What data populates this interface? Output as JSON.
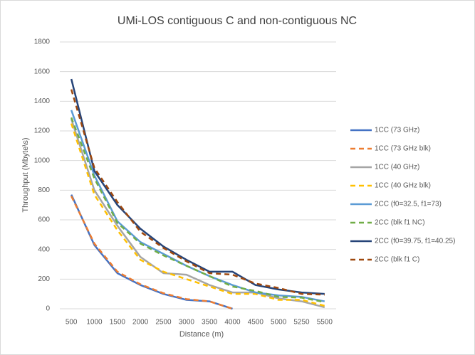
{
  "chart_data": {
    "type": "line",
    "title": "UMi-LOS contiguous C and non-contiguous NC",
    "x_label": "Distance (m)",
    "y_label": "Throughput (Mbyte\\s)",
    "categories": [
      "500",
      "1000",
      "1500",
      "2000",
      "2500",
      "3000",
      "3500",
      "4000",
      "4500",
      "5000",
      "5250",
      "5500"
    ],
    "ylim": [
      0,
      1800
    ],
    "yticks": [
      0,
      200,
      400,
      600,
      800,
      1000,
      1200,
      1400,
      1600,
      1800
    ],
    "grid": true,
    "legend": "right",
    "series": [
      {
        "name": "1CC (73 GHz)",
        "color": "#4472c4",
        "dashed": false,
        "values": [
          770,
          430,
          240,
          160,
          100,
          60,
          50,
          0,
          null,
          null,
          null,
          null
        ]
      },
      {
        "name": "1CC (73 GHz blk)",
        "color": "#ed7d31",
        "dashed": true,
        "values": [
          760,
          440,
          250,
          165,
          105,
          65,
          50,
          0,
          null,
          null,
          null,
          null
        ]
      },
      {
        "name": "1CC (40 GHz)",
        "color": "#a5a5a5",
        "dashed": false,
        "values": [
          1280,
          800,
          560,
          350,
          240,
          230,
          160,
          110,
          110,
          70,
          50,
          10
        ]
      },
      {
        "name": "1CC (40 GHz blk)",
        "color": "#ffc000",
        "dashed": true,
        "values": [
          1250,
          770,
          530,
          330,
          250,
          200,
          150,
          100,
          100,
          60,
          60,
          20
        ]
      },
      {
        "name": "2CC (f0=32.5, f1=73)",
        "color": "#5b9bd5",
        "dashed": false,
        "values": [
          1340,
          900,
          590,
          450,
          370,
          290,
          220,
          160,
          110,
          90,
          80,
          50
        ]
      },
      {
        "name": "2CC (blk f1 NC)",
        "color": "#70ad47",
        "dashed": true,
        "values": [
          1290,
          880,
          580,
          440,
          360,
          290,
          220,
          150,
          120,
          80,
          75,
          45
        ]
      },
      {
        "name": "2CC (f0=39.75, f1=40.25)",
        "color": "#264478",
        "dashed": false,
        "values": [
          1550,
          930,
          700,
          540,
          420,
          330,
          250,
          250,
          160,
          130,
          110,
          100
        ]
      },
      {
        "name": "2CC (blk f1 C)",
        "color": "#9e480e",
        "dashed": true,
        "values": [
          1480,
          950,
          720,
          520,
          410,
          320,
          240,
          230,
          170,
          140,
          100,
          95
        ]
      }
    ]
  }
}
